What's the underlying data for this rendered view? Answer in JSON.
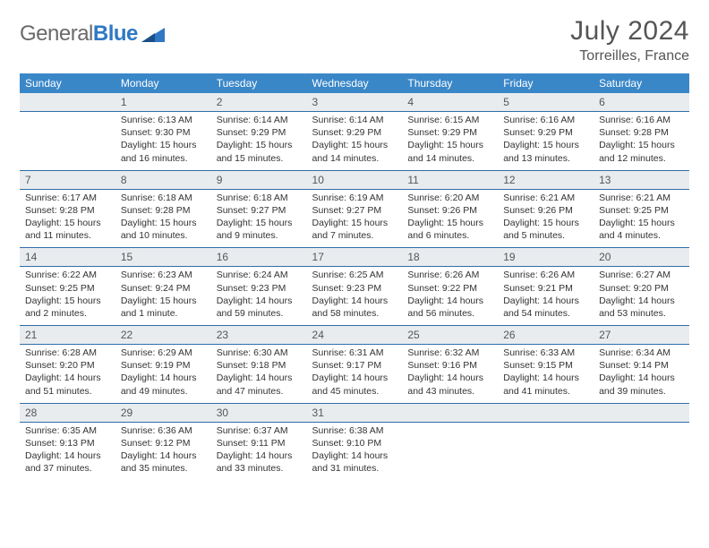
{
  "logo": {
    "word1": "General",
    "word2": "Blue"
  },
  "header": {
    "month": "July 2024",
    "location": "Torreilles, France"
  },
  "colors": {
    "brand_blue": "#3a87c8",
    "accent_blue": "#2f6ea8",
    "row_gray": "#e9ecef",
    "text_gray": "#555"
  },
  "dayHeaders": [
    "Sunday",
    "Monday",
    "Tuesday",
    "Wednesday",
    "Thursday",
    "Friday",
    "Saturday"
  ],
  "weeks": [
    {
      "nums": [
        "",
        "1",
        "2",
        "3",
        "4",
        "5",
        "6"
      ],
      "cells": [
        null,
        {
          "sr": "Sunrise: 6:13 AM",
          "ss": "Sunset: 9:30 PM",
          "dl1": "Daylight: 15 hours",
          "dl2": "and 16 minutes."
        },
        {
          "sr": "Sunrise: 6:14 AM",
          "ss": "Sunset: 9:29 PM",
          "dl1": "Daylight: 15 hours",
          "dl2": "and 15 minutes."
        },
        {
          "sr": "Sunrise: 6:14 AM",
          "ss": "Sunset: 9:29 PM",
          "dl1": "Daylight: 15 hours",
          "dl2": "and 14 minutes."
        },
        {
          "sr": "Sunrise: 6:15 AM",
          "ss": "Sunset: 9:29 PM",
          "dl1": "Daylight: 15 hours",
          "dl2": "and 14 minutes."
        },
        {
          "sr": "Sunrise: 6:16 AM",
          "ss": "Sunset: 9:29 PM",
          "dl1": "Daylight: 15 hours",
          "dl2": "and 13 minutes."
        },
        {
          "sr": "Sunrise: 6:16 AM",
          "ss": "Sunset: 9:28 PM",
          "dl1": "Daylight: 15 hours",
          "dl2": "and 12 minutes."
        }
      ]
    },
    {
      "nums": [
        "7",
        "8",
        "9",
        "10",
        "11",
        "12",
        "13"
      ],
      "cells": [
        {
          "sr": "Sunrise: 6:17 AM",
          "ss": "Sunset: 9:28 PM",
          "dl1": "Daylight: 15 hours",
          "dl2": "and 11 minutes."
        },
        {
          "sr": "Sunrise: 6:18 AM",
          "ss": "Sunset: 9:28 PM",
          "dl1": "Daylight: 15 hours",
          "dl2": "and 10 minutes."
        },
        {
          "sr": "Sunrise: 6:18 AM",
          "ss": "Sunset: 9:27 PM",
          "dl1": "Daylight: 15 hours",
          "dl2": "and 9 minutes."
        },
        {
          "sr": "Sunrise: 6:19 AM",
          "ss": "Sunset: 9:27 PM",
          "dl1": "Daylight: 15 hours",
          "dl2": "and 7 minutes."
        },
        {
          "sr": "Sunrise: 6:20 AM",
          "ss": "Sunset: 9:26 PM",
          "dl1": "Daylight: 15 hours",
          "dl2": "and 6 minutes."
        },
        {
          "sr": "Sunrise: 6:21 AM",
          "ss": "Sunset: 9:26 PM",
          "dl1": "Daylight: 15 hours",
          "dl2": "and 5 minutes."
        },
        {
          "sr": "Sunrise: 6:21 AM",
          "ss": "Sunset: 9:25 PM",
          "dl1": "Daylight: 15 hours",
          "dl2": "and 4 minutes."
        }
      ]
    },
    {
      "nums": [
        "14",
        "15",
        "16",
        "17",
        "18",
        "19",
        "20"
      ],
      "cells": [
        {
          "sr": "Sunrise: 6:22 AM",
          "ss": "Sunset: 9:25 PM",
          "dl1": "Daylight: 15 hours",
          "dl2": "and 2 minutes."
        },
        {
          "sr": "Sunrise: 6:23 AM",
          "ss": "Sunset: 9:24 PM",
          "dl1": "Daylight: 15 hours",
          "dl2": "and 1 minute."
        },
        {
          "sr": "Sunrise: 6:24 AM",
          "ss": "Sunset: 9:23 PM",
          "dl1": "Daylight: 14 hours",
          "dl2": "and 59 minutes."
        },
        {
          "sr": "Sunrise: 6:25 AM",
          "ss": "Sunset: 9:23 PM",
          "dl1": "Daylight: 14 hours",
          "dl2": "and 58 minutes."
        },
        {
          "sr": "Sunrise: 6:26 AM",
          "ss": "Sunset: 9:22 PM",
          "dl1": "Daylight: 14 hours",
          "dl2": "and 56 minutes."
        },
        {
          "sr": "Sunrise: 6:26 AM",
          "ss": "Sunset: 9:21 PM",
          "dl1": "Daylight: 14 hours",
          "dl2": "and 54 minutes."
        },
        {
          "sr": "Sunrise: 6:27 AM",
          "ss": "Sunset: 9:20 PM",
          "dl1": "Daylight: 14 hours",
          "dl2": "and 53 minutes."
        }
      ]
    },
    {
      "nums": [
        "21",
        "22",
        "23",
        "24",
        "25",
        "26",
        "27"
      ],
      "cells": [
        {
          "sr": "Sunrise: 6:28 AM",
          "ss": "Sunset: 9:20 PM",
          "dl1": "Daylight: 14 hours",
          "dl2": "and 51 minutes."
        },
        {
          "sr": "Sunrise: 6:29 AM",
          "ss": "Sunset: 9:19 PM",
          "dl1": "Daylight: 14 hours",
          "dl2": "and 49 minutes."
        },
        {
          "sr": "Sunrise: 6:30 AM",
          "ss": "Sunset: 9:18 PM",
          "dl1": "Daylight: 14 hours",
          "dl2": "and 47 minutes."
        },
        {
          "sr": "Sunrise: 6:31 AM",
          "ss": "Sunset: 9:17 PM",
          "dl1": "Daylight: 14 hours",
          "dl2": "and 45 minutes."
        },
        {
          "sr": "Sunrise: 6:32 AM",
          "ss": "Sunset: 9:16 PM",
          "dl1": "Daylight: 14 hours",
          "dl2": "and 43 minutes."
        },
        {
          "sr": "Sunrise: 6:33 AM",
          "ss": "Sunset: 9:15 PM",
          "dl1": "Daylight: 14 hours",
          "dl2": "and 41 minutes."
        },
        {
          "sr": "Sunrise: 6:34 AM",
          "ss": "Sunset: 9:14 PM",
          "dl1": "Daylight: 14 hours",
          "dl2": "and 39 minutes."
        }
      ]
    },
    {
      "nums": [
        "28",
        "29",
        "30",
        "31",
        "",
        "",
        ""
      ],
      "cells": [
        {
          "sr": "Sunrise: 6:35 AM",
          "ss": "Sunset: 9:13 PM",
          "dl1": "Daylight: 14 hours",
          "dl2": "and 37 minutes."
        },
        {
          "sr": "Sunrise: 6:36 AM",
          "ss": "Sunset: 9:12 PM",
          "dl1": "Daylight: 14 hours",
          "dl2": "and 35 minutes."
        },
        {
          "sr": "Sunrise: 6:37 AM",
          "ss": "Sunset: 9:11 PM",
          "dl1": "Daylight: 14 hours",
          "dl2": "and 33 minutes."
        },
        {
          "sr": "Sunrise: 6:38 AM",
          "ss": "Sunset: 9:10 PM",
          "dl1": "Daylight: 14 hours",
          "dl2": "and 31 minutes."
        },
        null,
        null,
        null
      ]
    }
  ]
}
